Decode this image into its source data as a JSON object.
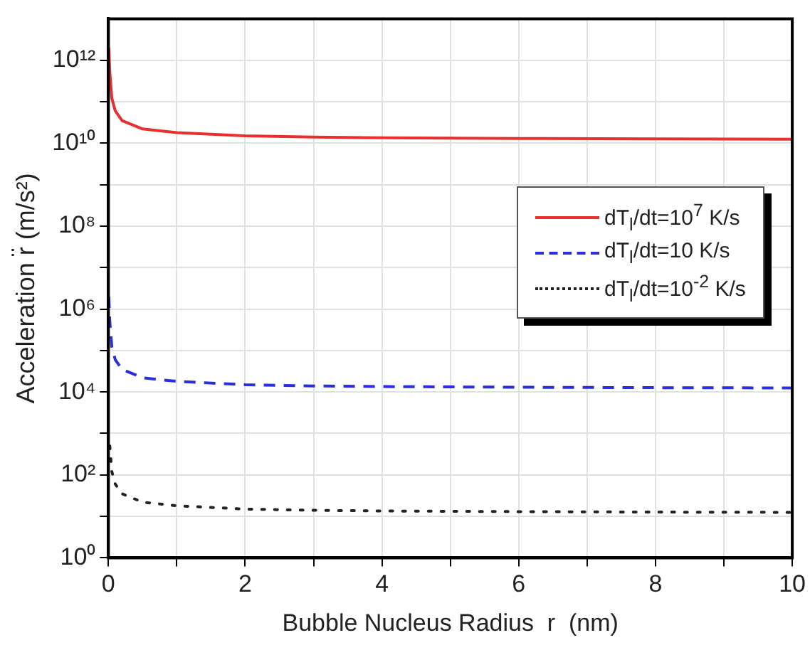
{
  "chart_data": {
    "type": "line",
    "xlabel": "Bubble Nucleus Radius  r  (nm)",
    "ylabel": "Acceleration r̈ (m/s²)",
    "log": "y",
    "grid": true,
    "legend": "right",
    "marker": "none",
    "xlim": [
      0,
      10
    ],
    "xticks": [
      0,
      {
        "value": 1,
        "label": null
      },
      2,
      {
        "value": 3,
        "label": null
      },
      4,
      {
        "value": 5,
        "label": null
      },
      6,
      {
        "value": 7,
        "label": null
      },
      8,
      {
        "value": 9,
        "label": null
      },
      10
    ],
    "ylim": [
      1,
      10000000000000
    ],
    "yticks": [
      {
        "value": 1,
        "label": "10⁰"
      },
      {
        "value": 10,
        "label": null
      },
      {
        "value": 100,
        "label": "10²"
      },
      {
        "value": 1000,
        "label": null
      },
      {
        "value": 10000,
        "label": "10⁴"
      },
      {
        "value": 100000,
        "label": null
      },
      {
        "value": 1000000,
        "label": "10⁶"
      },
      {
        "value": 10000000,
        "label": null
      },
      {
        "value": 100000000,
        "label": "10⁸"
      },
      {
        "value": 1000000000,
        "label": null
      },
      {
        "value": 10000000000,
        "label": "10¹⁰"
      },
      {
        "value": 100000000000,
        "label": null
      },
      {
        "value": 1000000000000,
        "label": "10¹²"
      }
    ],
    "x": [
      0.005,
      0.02,
      0.05,
      0.1,
      0.2,
      0.5,
      1,
      2,
      3,
      4,
      6,
      8,
      10
    ],
    "series": [
      {
        "name": "dT$_{l}$/dt=10$^{7}$ K/s",
        "color": "#e8312f",
        "line_style": "solid",
        "values": [
          2000000000000,
          500000000000,
          120000000000,
          60000000000,
          35000000000,
          22000000000,
          18000000000,
          15000000000,
          14000000000,
          13500000000,
          13000000000,
          12700000000,
          12500000000
        ]
      },
      {
        "name": "dT$_{l}$/dt=10 K/s",
        "color": "#2a2ee0",
        "line_style": "dashed",
        "values": [
          2000000,
          500000,
          120000,
          60000,
          35000,
          22000,
          18000,
          15000,
          14000,
          13500,
          13000,
          12700,
          12500
        ]
      },
      {
        "name": "dT$_{l}$/dt=10$^{-2}$ K/s",
        "color": "#222222",
        "line_style": "dotted",
        "values": [
          null,
          500,
          120,
          60,
          35,
          22,
          18,
          15,
          14,
          13.5,
          13,
          12.7,
          12.5
        ]
      }
    ]
  }
}
